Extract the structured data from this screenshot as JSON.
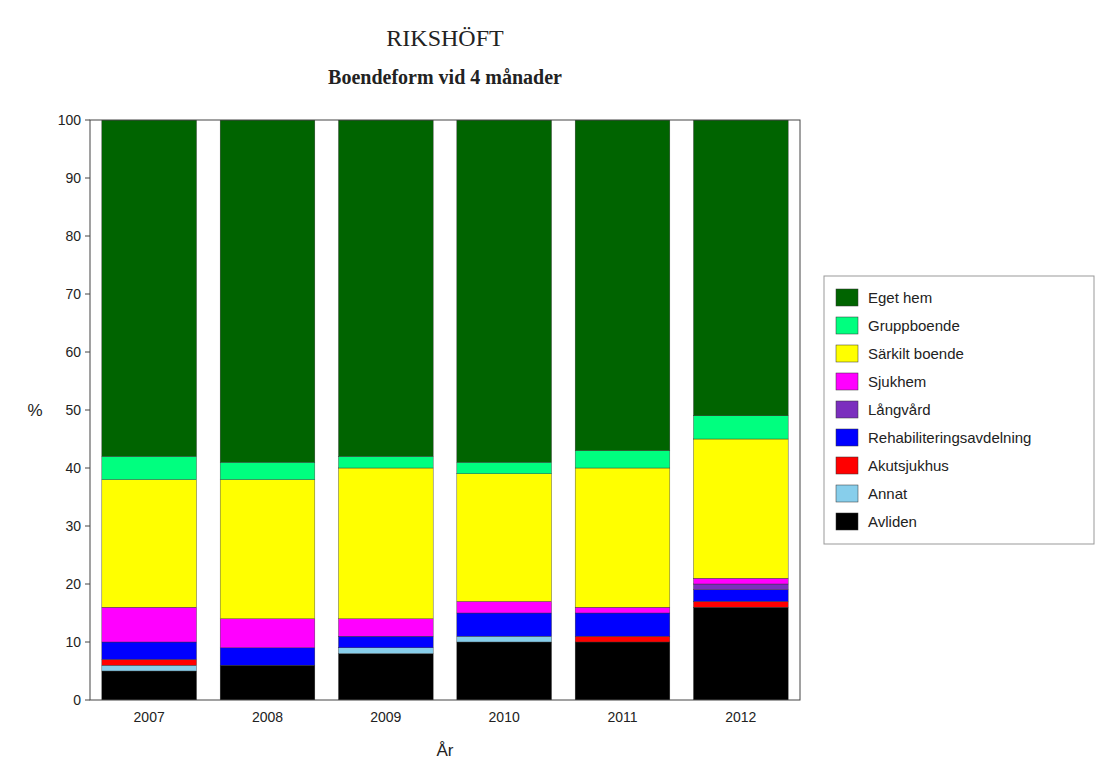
{
  "chart_data": {
    "type": "bar",
    "stacked": true,
    "grid": false,
    "legend": "right",
    "title": "RIKSHÖFT",
    "subtitle": "Boendeform vid 4 månader",
    "x_label": "År",
    "y_label": "%",
    "categories": [
      "2007",
      "2008",
      "2009",
      "2010",
      "2011",
      "2012"
    ],
    "ylim": [
      0,
      100
    ],
    "yticks": [
      0,
      10,
      20,
      30,
      40,
      50,
      60,
      70,
      80,
      90,
      100
    ],
    "series": [
      {
        "name": "Avliden",
        "color": "#000000",
        "values": [
          5,
          6,
          8,
          10,
          10,
          16
        ]
      },
      {
        "name": "Annat",
        "color": "#87CEEB",
        "values": [
          1,
          0,
          1,
          1,
          0,
          0
        ]
      },
      {
        "name": "Akutsjukhus",
        "color": "#FF0000",
        "values": [
          1,
          0,
          0,
          0,
          1,
          1
        ]
      },
      {
        "name": "Rehabiliteringsavdelning",
        "color": "#0000FF",
        "values": [
          3,
          3,
          2,
          4,
          4,
          2
        ]
      },
      {
        "name": "Långvård",
        "color": "#7B2FBE",
        "values": [
          0,
          0,
          0,
          0,
          0,
          1
        ]
      },
      {
        "name": "Sjukhem",
        "color": "#FF00FF",
        "values": [
          6,
          5,
          3,
          2,
          1,
          1
        ]
      },
      {
        "name": "Särkilt boende",
        "color": "#FFFF00",
        "values": [
          22,
          24,
          26,
          22,
          24,
          24
        ]
      },
      {
        "name": "Gruppboende",
        "color": "#00FF7F",
        "values": [
          4,
          3,
          2,
          2,
          3,
          4
        ]
      },
      {
        "name": "Eget hem",
        "color": "#006400",
        "values": [
          58,
          59,
          58,
          59,
          57,
          51
        ]
      }
    ]
  }
}
